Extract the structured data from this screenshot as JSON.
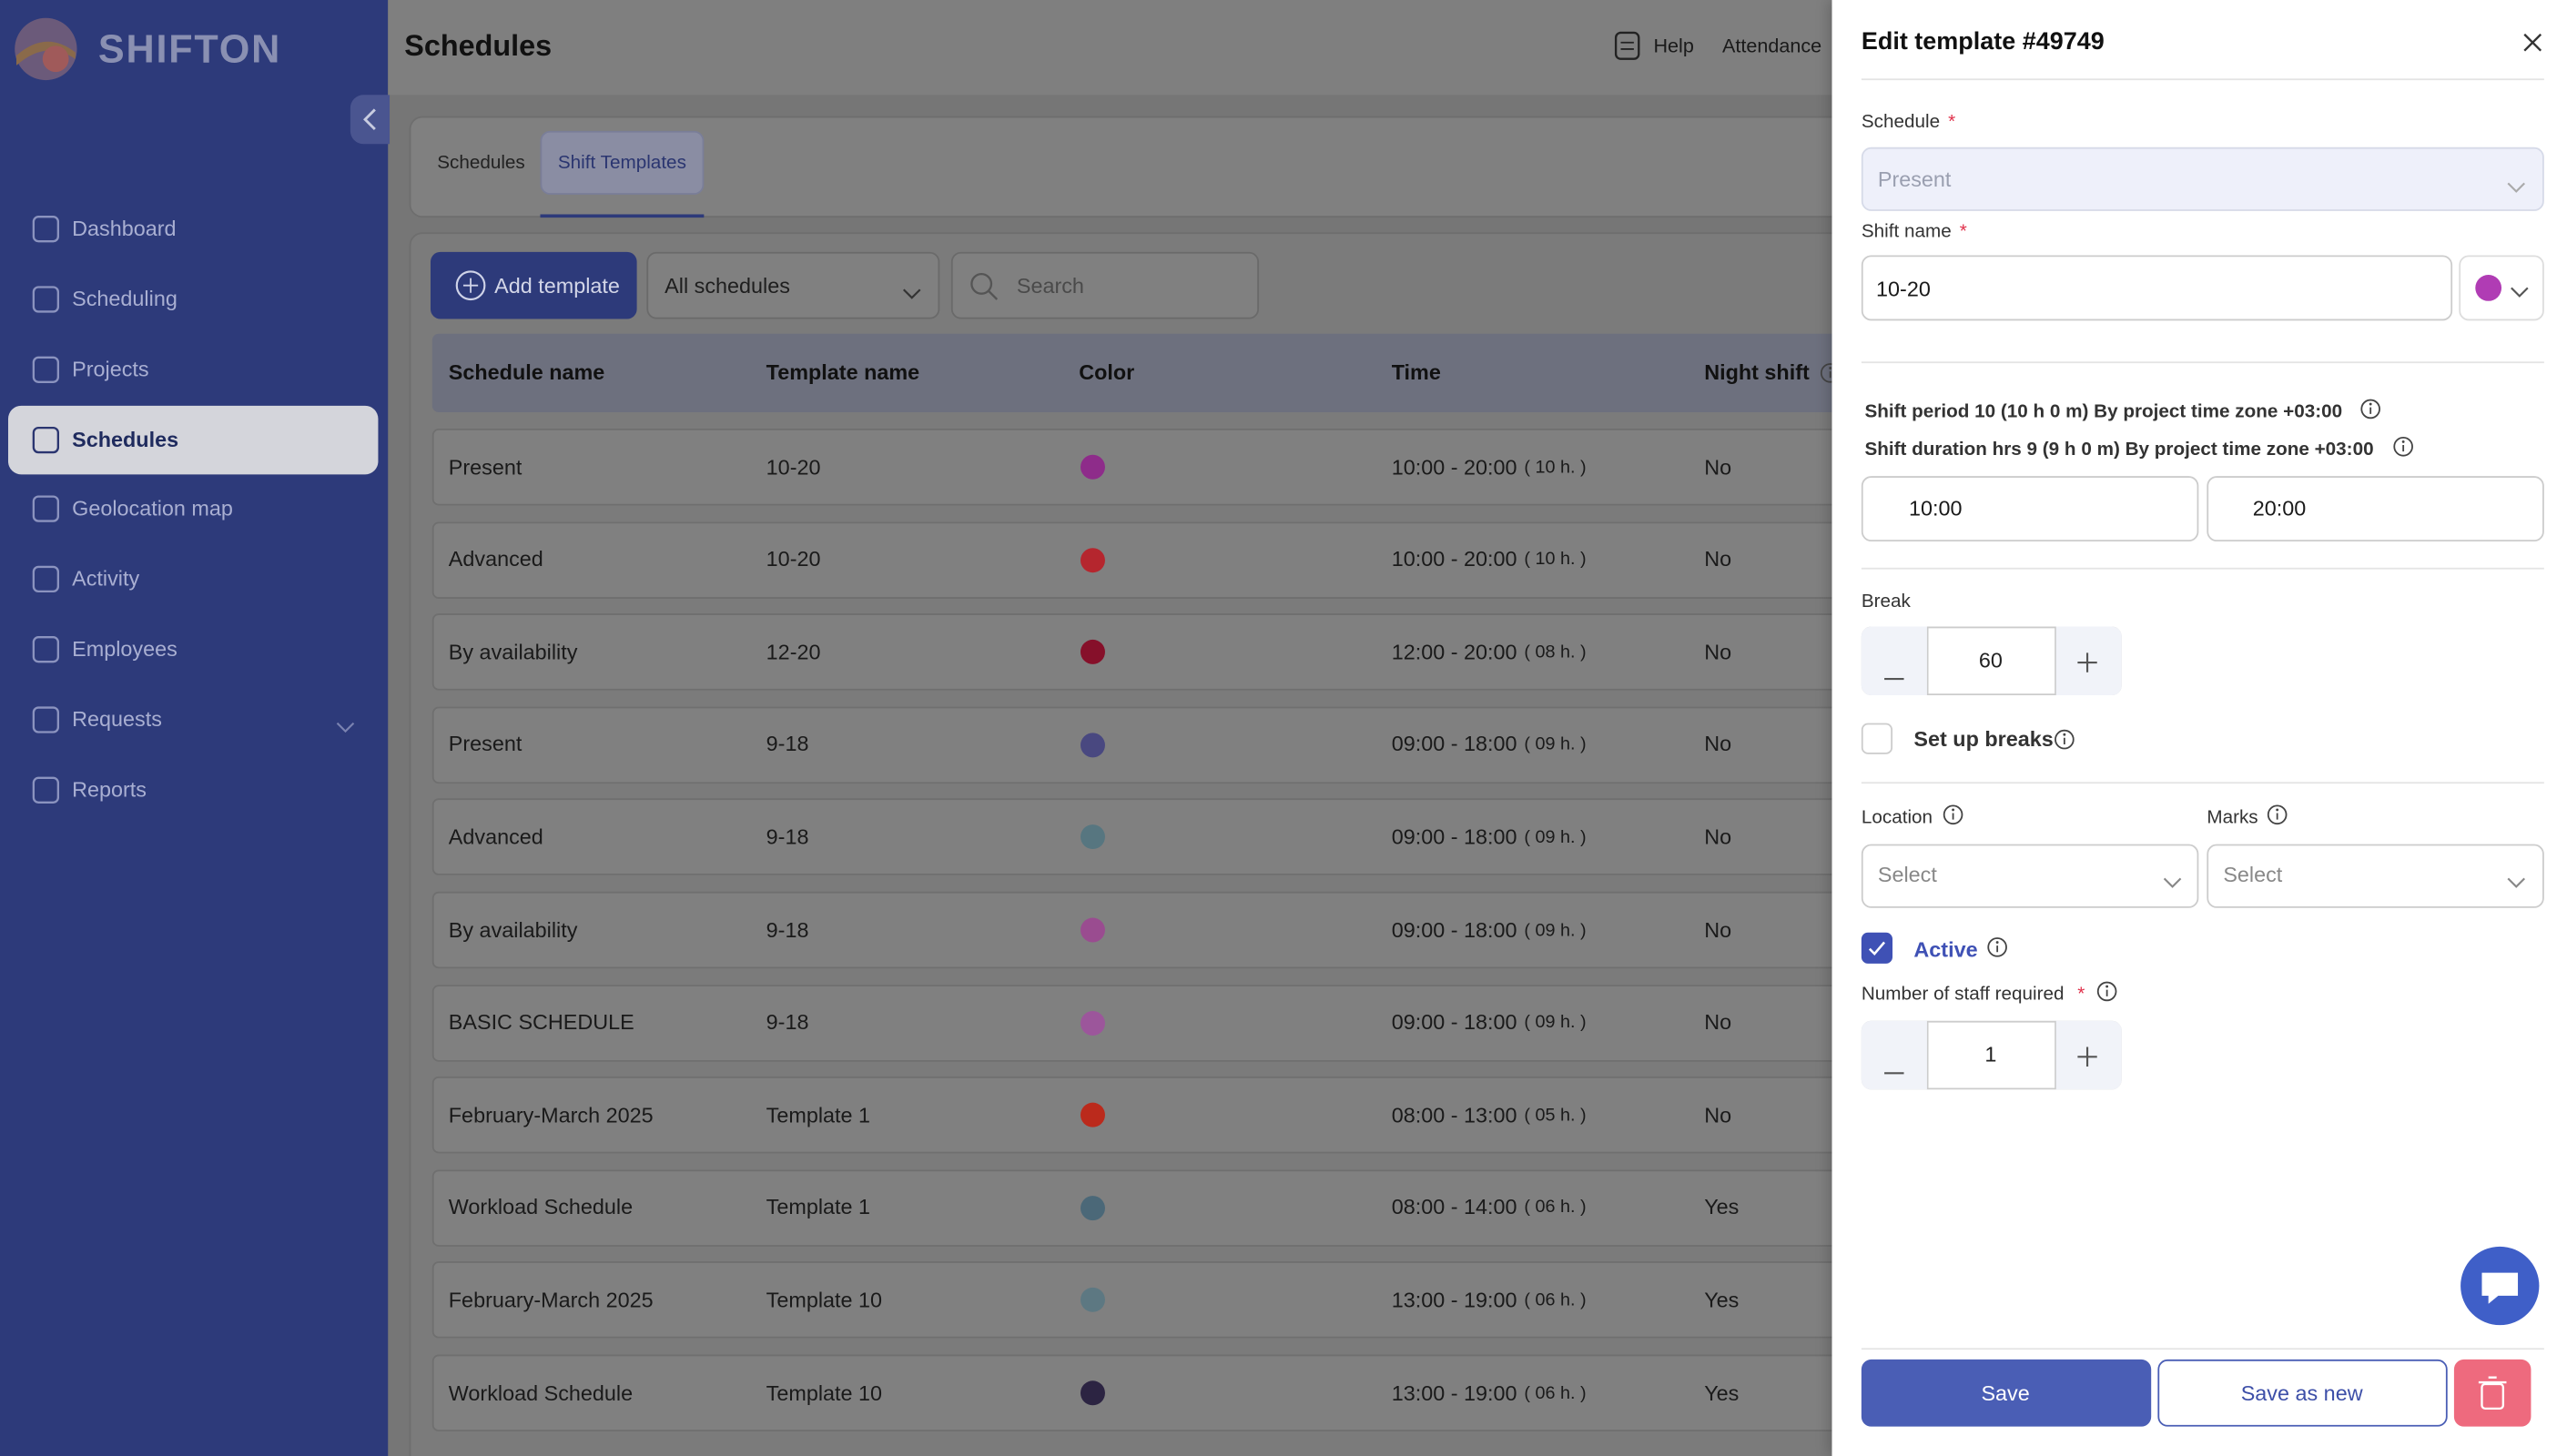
{
  "sidebar": {
    "brand": "SHIFTON",
    "nav": [
      "Dashboard",
      "Scheduling",
      "Projects",
      "Schedules",
      "Geolocation map",
      "Activity",
      "Employees",
      "Requests",
      "Reports"
    ]
  },
  "header": {
    "title": "Schedules",
    "help": "Help",
    "attendance": "Attendance"
  },
  "tabs": [
    "Schedules",
    "Shift Templates"
  ],
  "toolbar": {
    "add": "Add template",
    "filter": "All schedules",
    "search": "Search"
  },
  "table": {
    "columns": [
      "Schedule name",
      "Template name",
      "Color",
      "Time",
      "Night shift"
    ],
    "rows": [
      {
        "schedule": "Present",
        "template": "10-20",
        "color": "#8e2c8a",
        "time": "10:00 - 20:00",
        "hours": "( 10 h. )",
        "night": "No"
      },
      {
        "schedule": "Advanced",
        "template": "10-20",
        "color": "#b5262e",
        "time": "10:00 - 20:00",
        "hours": "( 10 h. )",
        "night": "No"
      },
      {
        "schedule": "By availability",
        "template": "12-20",
        "color": "#86102a",
        "time": "12:00 - 20:00",
        "hours": "( 08 h. )",
        "night": "No"
      },
      {
        "schedule": "Present",
        "template": "9-18",
        "color": "#494880",
        "time": "09:00 - 18:00",
        "hours": "( 09 h. )",
        "night": "No"
      },
      {
        "schedule": "Advanced",
        "template": "9-18",
        "color": "#577680",
        "time": "09:00 - 18:00",
        "hours": "( 09 h. )",
        "night": "No"
      },
      {
        "schedule": "By availability",
        "template": "9-18",
        "color": "#9a4c90",
        "time": "09:00 - 18:00",
        "hours": "( 09 h. )",
        "night": "No"
      },
      {
        "schedule": "BASIC SCHEDULE",
        "template": "9-18",
        "color": "#9c569b",
        "time": "09:00 - 18:00",
        "hours": "( 09 h. )",
        "night": "No"
      },
      {
        "schedule": "February-March 2025",
        "template": "Template 1",
        "color": "#bb2a1c",
        "time": "08:00 - 13:00",
        "hours": "( 05 h. )",
        "night": "No"
      },
      {
        "schedule": "Workload Schedule",
        "template": "Template 1",
        "color": "#4b6878",
        "time": "08:00 - 14:00",
        "hours": "( 06 h. )",
        "night": "Yes"
      },
      {
        "schedule": "February-March 2025",
        "template": "Template 10",
        "color": "#5d7882",
        "time": "13:00 - 19:00",
        "hours": "( 06 h. )",
        "night": "Yes"
      },
      {
        "schedule": "Workload Schedule",
        "template": "Template 10",
        "color": "#2c2442",
        "time": "13:00 - 19:00",
        "hours": "( 06 h. )",
        "night": "Yes"
      }
    ]
  },
  "panel": {
    "title": "Edit template #49749",
    "required": "*",
    "schedule_label": "Schedule",
    "schedule": "Present",
    "shift_name_label": "Shift name",
    "shift_name": "10-20",
    "shift_color": "#b03cb4",
    "period": "Shift period 10 (10 h 0 m) By project time zone +03:00",
    "duration": "Shift duration hrs 9 (9 h 0 m) By project time zone +03:00",
    "start": "10:00",
    "end": "20:00",
    "break_label": "Break",
    "break": "60",
    "setup_breaks": "Set up breaks",
    "location_label": "Location",
    "location": "Select",
    "marks_label": "Marks",
    "marks": "Select",
    "active": "Active",
    "staff_label": "Number of staff required",
    "staff": "1",
    "save": "Save",
    "save_new": "Save as new"
  }
}
